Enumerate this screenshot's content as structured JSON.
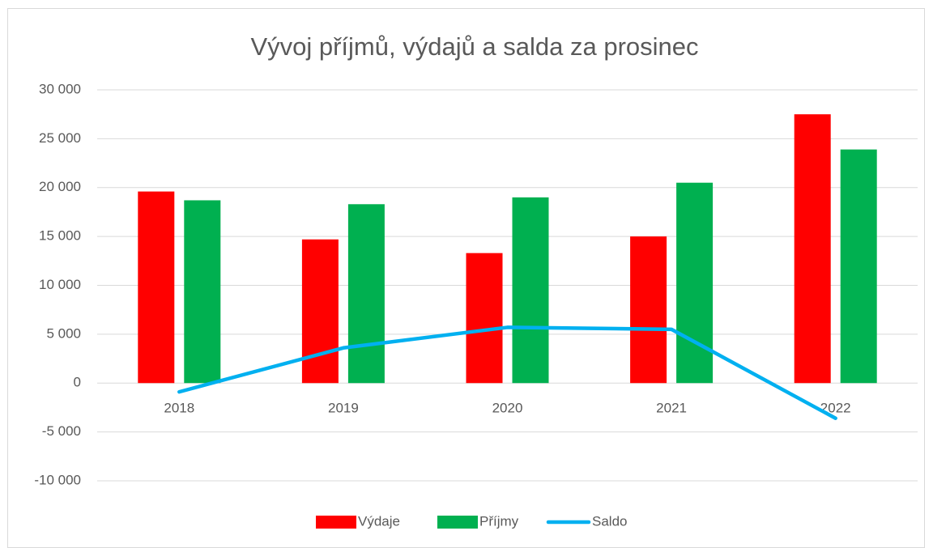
{
  "chart_data": {
    "type": "bar",
    "title": "Vývoj příjmů, výdajů a salda za prosinec",
    "categories": [
      "2018",
      "2019",
      "2020",
      "2021",
      "2022"
    ],
    "series": [
      {
        "name": "Výdaje",
        "type": "bar",
        "color": "#ff0000",
        "values": [
          19600,
          14700,
          13300,
          15000,
          27500
        ]
      },
      {
        "name": "Příjmy",
        "type": "bar",
        "color": "#00b050",
        "values": [
          18700,
          18300,
          19000,
          20500,
          23900
        ]
      },
      {
        "name": "Saldo",
        "type": "line",
        "color": "#00b0f0",
        "values": [
          -900,
          3600,
          5700,
          5500,
          -3600
        ]
      }
    ],
    "ylim": [
      -10000,
      30000
    ],
    "yticks": [
      {
        "value": -10000,
        "label": "-10 000"
      },
      {
        "value": -5000,
        "label": "-5 000"
      },
      0,
      {
        "value": 5000,
        "label": "5 000"
      },
      {
        "value": 10000,
        "label": "10 000"
      },
      {
        "value": 15000,
        "label": "15 000"
      },
      {
        "value": 20000,
        "label": "20 000"
      },
      {
        "value": 25000,
        "label": "25 000"
      },
      {
        "value": 30000,
        "label": "30 000"
      }
    ],
    "grid": true,
    "legend": "bottom"
  }
}
